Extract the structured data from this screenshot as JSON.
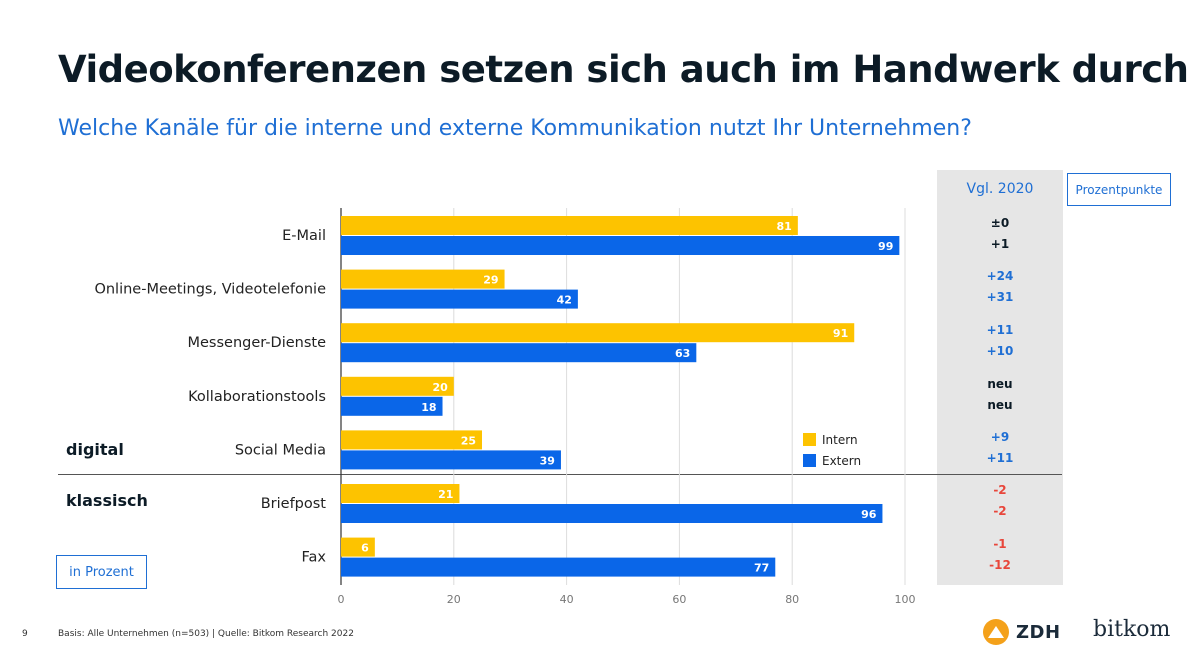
{
  "header": {
    "title": "Videokonferenzen setzen sich auch im Handwerk durch",
    "subtitle": "Welche Kanäle für die interne und externe Kommunikation nutzt Ihr Unternehmen?"
  },
  "badges": {
    "percentage_points": "Prozentpunkte",
    "in_percent": "in Prozent"
  },
  "groups": {
    "digital": "digital",
    "classic": "klassisch"
  },
  "comparison": {
    "header": "Vgl. 2020",
    "rows": [
      {
        "intern": "±0",
        "extern": "+1",
        "color": "#0c1b26"
      },
      {
        "intern": "+24",
        "extern": "+31",
        "color": "#1f6fd4"
      },
      {
        "intern": "+11",
        "extern": "+10",
        "color": "#1f6fd4"
      },
      {
        "intern": "neu",
        "extern": "neu",
        "color": "#0c1b26"
      },
      {
        "intern": "+9",
        "extern": "+11",
        "color": "#1f6fd4"
      },
      {
        "intern": "-2",
        "extern": "-2",
        "color": "#e8463b"
      },
      {
        "intern": "-1",
        "extern": "-12",
        "color": "#e8463b"
      }
    ]
  },
  "footer": {
    "page_number": "9",
    "source": "Basis: Alle Unternehmen (n=503) | Quelle: Bitkom Research 2022"
  },
  "logos": {
    "zdh": "ZDH",
    "bitkom": "bitkom"
  },
  "colors": {
    "intern": "#fdc300",
    "extern": "#0a66e8",
    "accent": "#1f6fd4",
    "negative": "#e8463b"
  },
  "chart_data": {
    "type": "bar",
    "orientation": "horizontal",
    "categories": [
      "E-Mail",
      "Online-Meetings, Videotelefonie",
      "Messenger-Dienste",
      "Kollaborationstools",
      "Social Media",
      "Briefpost",
      "Fax"
    ],
    "series": [
      {
        "name": "Intern",
        "values": [
          81,
          29,
          91,
          20,
          25,
          21,
          6
        ]
      },
      {
        "name": "Extern",
        "values": [
          99,
          42,
          63,
          18,
          39,
          96,
          77
        ]
      }
    ],
    "xlim": [
      0,
      100
    ],
    "xticks": [
      0,
      20,
      40,
      60,
      80,
      100
    ],
    "grid": true,
    "legend_placement": "inside-right"
  }
}
